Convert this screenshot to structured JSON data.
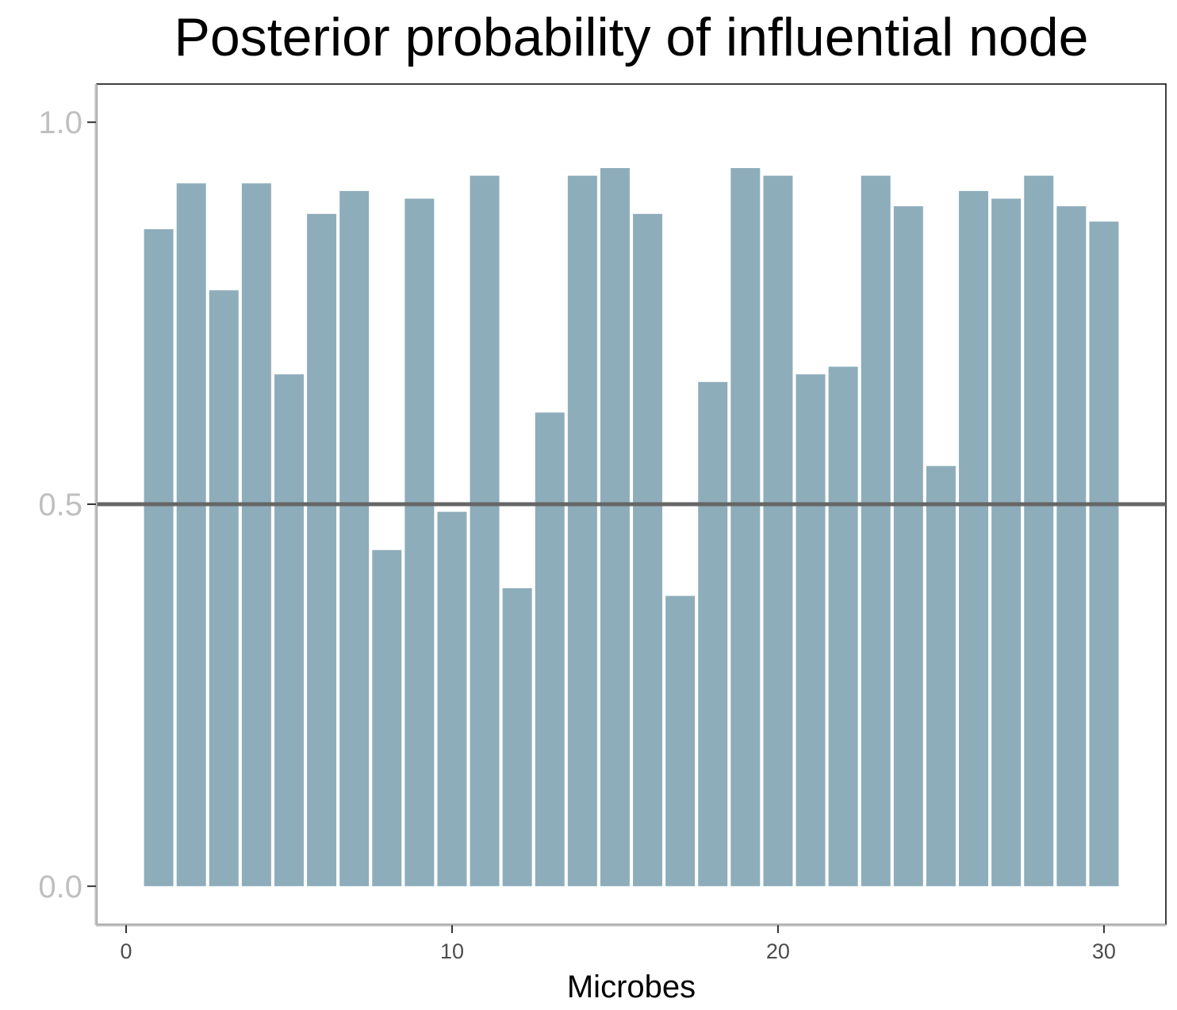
{
  "chart_data": {
    "type": "bar",
    "title": "Posterior probability of influential node",
    "xlabel": "Microbes",
    "ylabel": "",
    "x": [
      1,
      2,
      3,
      4,
      5,
      6,
      7,
      8,
      9,
      10,
      11,
      12,
      13,
      14,
      15,
      16,
      17,
      18,
      19,
      20,
      21,
      22,
      23,
      24,
      25,
      26,
      27,
      28,
      29,
      30
    ],
    "values": [
      0.86,
      0.92,
      0.78,
      0.92,
      0.67,
      0.88,
      0.91,
      0.44,
      0.9,
      0.49,
      0.93,
      0.39,
      0.62,
      0.93,
      0.94,
      0.88,
      0.38,
      0.66,
      0.94,
      0.93,
      0.67,
      0.68,
      0.93,
      0.89,
      0.55,
      0.91,
      0.9,
      0.93,
      0.89,
      0.87
    ],
    "xlim": [
      -0.9,
      31.9
    ],
    "ylim": [
      -0.05,
      1.05
    ],
    "xticks": [
      0,
      10,
      20,
      30
    ],
    "xtick_labels": [
      "0",
      "10",
      "20",
      "30"
    ],
    "yticks": [
      0.0,
      0.5,
      1.0
    ],
    "ytick_labels": [
      "0.0",
      "0.5",
      "1.0"
    ],
    "reference_line": 0.5,
    "grid": false,
    "colors": {
      "bar": "#8eadba",
      "reference_line": "#666666",
      "ytick_label": "#bfbfbf",
      "axis_line": "#bfbfbf",
      "panel_border": "#000000"
    }
  }
}
